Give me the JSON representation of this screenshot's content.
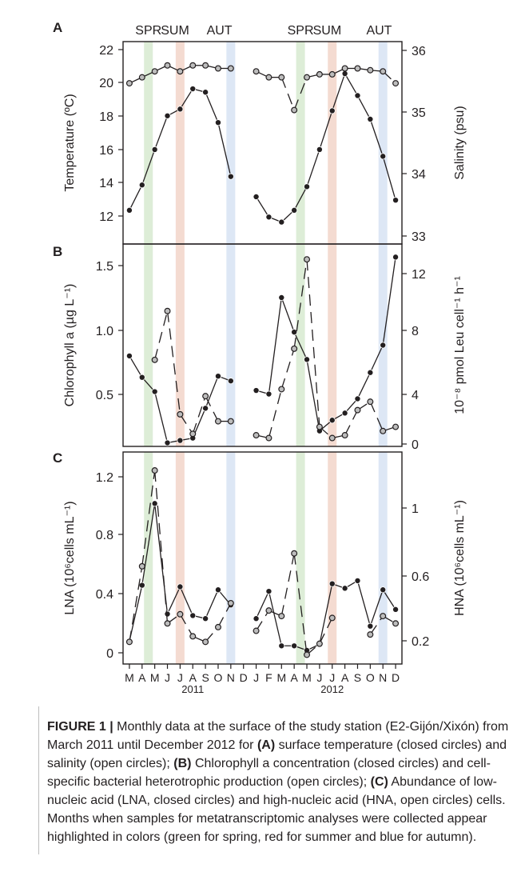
{
  "months": [
    "M",
    "A",
    "M",
    "J",
    "J",
    "A",
    "S",
    "O",
    "N",
    "D",
    "J",
    "F",
    "M",
    "A",
    "M",
    "J",
    "J",
    "A",
    "S",
    "O",
    "N",
    "D"
  ],
  "years": [
    {
      "label": "2011",
      "at": 5
    },
    {
      "label": "2012",
      "at": 16
    }
  ],
  "season_bands": [
    {
      "index": 1.5,
      "color": "#d7ead0"
    },
    {
      "index": 4,
      "color": "#f2d5c9"
    },
    {
      "index": 8,
      "color": "#d7e3f3"
    },
    {
      "index": 13.5,
      "color": "#d7ead0"
    },
    {
      "index": 16,
      "color": "#f2d5c9"
    },
    {
      "index": 20,
      "color": "#d7e3f3"
    }
  ],
  "season_labels": [
    {
      "text": "SPR",
      "at": 1.5
    },
    {
      "text": "SUM",
      "at": 3.6
    },
    {
      "text": "AUT",
      "at": 7.1
    },
    {
      "text": "SPR",
      "at": 13.5
    },
    {
      "text": "SUM",
      "at": 15.6
    },
    {
      "text": "AUT",
      "at": 19.7
    }
  ],
  "chart_data": [
    {
      "panel": "A",
      "type": "line",
      "ylabel_left": "Temperature (ºC)",
      "ylabel_right": "Salinity (psu)",
      "ylim_left": [
        11,
        23
      ],
      "ylim_right": [
        32.8,
        36.2
      ],
      "ticks_left": [
        "12",
        "14",
        "16",
        "18",
        "20",
        "22"
      ],
      "ticks_right": [
        "33",
        "34",
        "35",
        "36"
      ],
      "series": [
        {
          "name": "surface temperature (closed circles)",
          "axis": "left",
          "style": "closed",
          "x": [
            0,
            1,
            2,
            3,
            4,
            5,
            6,
            7,
            8,
            9,
            10,
            11,
            12,
            13,
            14,
            15,
            16,
            17,
            18,
            19,
            20,
            21
          ],
          "y": [
            13.0,
            14.5,
            16.6,
            18.6,
            19.0,
            20.2,
            20.0,
            18.2,
            15.0,
            null,
            13.8,
            12.6,
            12.3,
            13.0,
            14.4,
            16.6,
            18.9,
            21.1,
            19.8,
            18.4,
            16.2,
            13.6
          ]
        },
        {
          "name": "salinity (open circles)",
          "axis": "right",
          "style": "open",
          "x": [
            0,
            1,
            2,
            3,
            4,
            5,
            6,
            7,
            8,
            9,
            10,
            11,
            12,
            13,
            14,
            15,
            16,
            17,
            18,
            19,
            20,
            21
          ],
          "y": [
            35.5,
            35.6,
            35.7,
            35.8,
            35.7,
            35.8,
            35.8,
            35.75,
            35.75,
            null,
            35.7,
            35.6,
            35.6,
            35.05,
            35.6,
            35.65,
            35.65,
            35.75,
            35.75,
            35.72,
            35.7,
            35.5
          ]
        }
      ]
    },
    {
      "panel": "B",
      "type": "line",
      "ylabel_left": "Chlorophyll a (µg L⁻¹)",
      "ylabel_right": "10⁻⁸ pmol Leu cell⁻¹ h⁻¹",
      "ylim_left": [
        0,
        1.7
      ],
      "ylim_right": [
        0,
        14.5
      ],
      "ticks_left": [
        "0.5",
        "1.0",
        "1.5"
      ],
      "ticks_right": [
        "0",
        "4",
        "8",
        "12"
      ],
      "series": [
        {
          "name": "Chlorophyll a concentration (closed circles)",
          "axis": "left",
          "style": "closed",
          "x": [
            0,
            1,
            2,
            3,
            4,
            5,
            6,
            7,
            8,
            9,
            10,
            11,
            12,
            13,
            14,
            15,
            16,
            17,
            18,
            19,
            20,
            21
          ],
          "y": [
            0.76,
            0.58,
            0.46,
            0.03,
            0.05,
            0.07,
            0.32,
            0.59,
            0.55,
            null,
            0.47,
            0.44,
            1.25,
            0.96,
            0.73,
            0.13,
            0.22,
            0.28,
            0.4,
            0.62,
            0.85,
            1.59
          ]
        },
        {
          "name": "cell-specific bacterial heterotrophic production (open circles)",
          "axis": "right",
          "style": "open",
          "x": [
            0,
            1,
            2,
            3,
            4,
            5,
            6,
            7,
            8,
            9,
            10,
            11,
            12,
            13,
            14,
            15,
            16,
            17,
            18,
            19,
            20,
            21
          ],
          "y": [
            null,
            null,
            6.2,
            9.7,
            2.3,
            0.9,
            3.6,
            1.8,
            1.8,
            null,
            0.8,
            0.6,
            4.1,
            7.0,
            13.4,
            1.4,
            0.6,
            0.8,
            2.6,
            3.2,
            1.1,
            1.4
          ]
        }
      ]
    },
    {
      "panel": "C",
      "type": "line",
      "ylabel_left": "LNA (10⁶cells mL⁻¹)",
      "ylabel_right": "HNA (10⁶cells mL⁻¹)",
      "ylim_left": [
        -0.04,
        1.36
      ],
      "ylim_right": [
        0.1,
        1.25
      ],
      "ticks_left": [
        "0",
        "0.4",
        "0.8",
        "1.2"
      ],
      "ticks_right": [
        "0.2",
        "0.6",
        "1"
      ],
      "series": [
        {
          "name": "LNA (closed circles)",
          "axis": "left",
          "style": "closed",
          "x": [
            0,
            1,
            2,
            3,
            4,
            5,
            6,
            7,
            8,
            9,
            10,
            11,
            12,
            13,
            14,
            15,
            16,
            17,
            18,
            19,
            20,
            21
          ],
          "y": [
            0.11,
            0.48,
            1.02,
            0.29,
            0.47,
            0.28,
            0.26,
            0.45,
            0.35,
            null,
            0.26,
            0.44,
            0.08,
            0.08,
            0.05,
            0.09,
            0.49,
            0.46,
            0.51,
            0.21,
            0.45,
            0.32
          ]
        },
        {
          "name": "HNA (open circles)",
          "axis": "right",
          "style": "open",
          "x": [
            0,
            1,
            2,
            3,
            4,
            5,
            6,
            7,
            8,
            9,
            10,
            11,
            12,
            13,
            14,
            15,
            16,
            17,
            18,
            19,
            20,
            21
          ],
          "y": [
            0.22,
            0.63,
            1.15,
            0.32,
            0.37,
            0.25,
            0.22,
            0.3,
            0.43,
            null,
            0.28,
            0.39,
            0.36,
            0.7,
            0.15,
            0.21,
            0.35,
            null,
            null,
            0.26,
            0.36,
            0.32
          ]
        }
      ]
    }
  ],
  "caption": {
    "fig_label": "FIGURE 1 |",
    "p1": " Monthly data at the surface of the study station (E2-Gijón/Xixón) from March 2011 until December 2012 for ",
    "A": "(A)",
    "p2": " surface temperature (closed circles) and salinity (open circles); ",
    "B": "(B)",
    "p3": " Chlorophyll a concentration (closed circles) and cell-specific bacterial heterotrophic production (open circles); ",
    "C": "(C)",
    "p4": " Abundance of low- nucleic acid (LNA, closed circles) and high-nucleic acid (HNA, open circles) cells. Months when samples for metatranscriptomic analyses were collected appear highlighted in colors (green for spring, red for summer and blue for autumn)."
  }
}
